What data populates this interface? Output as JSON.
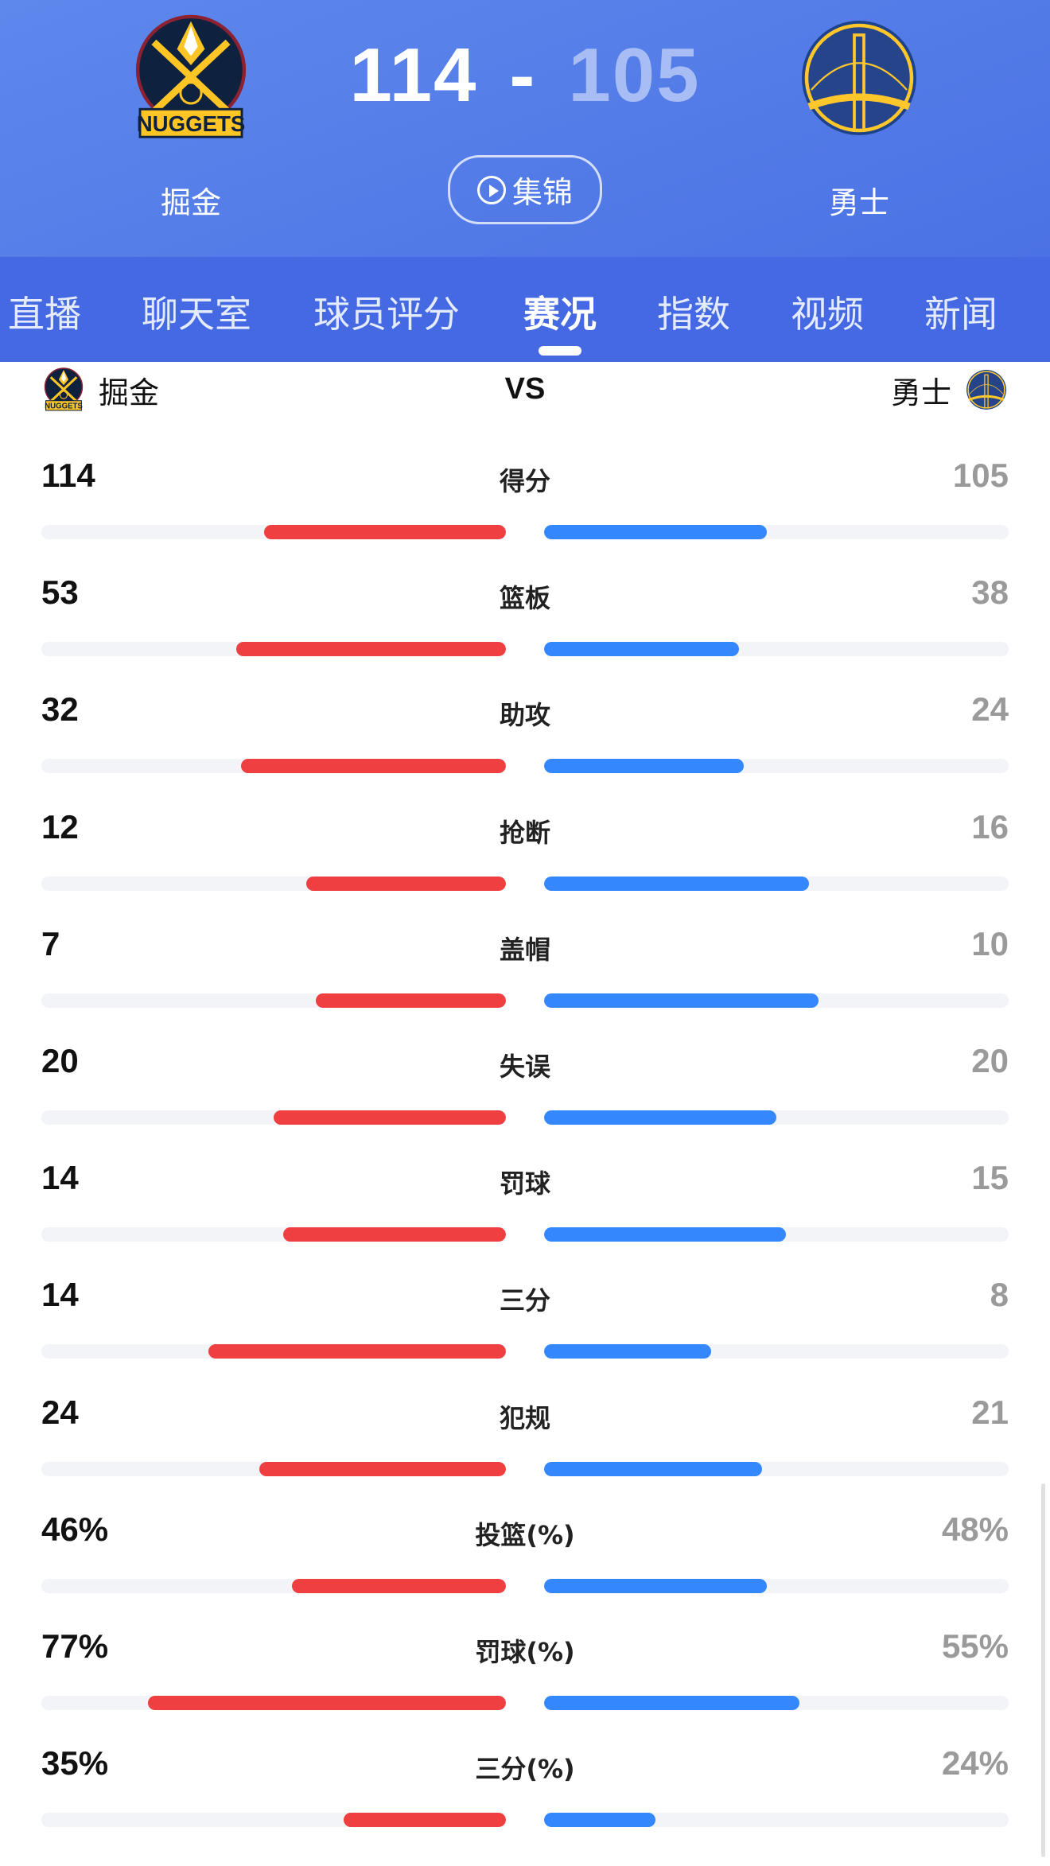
{
  "header": {
    "home": {
      "name": "掘金",
      "logo_text": "NUGGETS",
      "score": "114"
    },
    "away": {
      "name": "勇士",
      "score": "105"
    },
    "dash": "-",
    "highlights_label": "集锦"
  },
  "tabs": [
    {
      "label": "直播"
    },
    {
      "label": "聊天室"
    },
    {
      "label": "球员评分"
    },
    {
      "label": "赛况",
      "active": true
    },
    {
      "label": "指数"
    },
    {
      "label": "视频"
    },
    {
      "label": "新闻"
    }
  ],
  "compare": {
    "home": "掘金",
    "vs": "VS",
    "away": "勇士"
  },
  "colors": {
    "home": "#f03f40",
    "away": "#3487fd",
    "track": "#f3f4f8"
  },
  "stats": [
    {
      "label": "得分",
      "home": "114",
      "away": "105",
      "home_fill": 0.52,
      "away_fill": 0.48
    },
    {
      "label": "篮板",
      "home": "53",
      "away": "38",
      "home_fill": 0.58,
      "away_fill": 0.42
    },
    {
      "label": "助攻",
      "home": "32",
      "away": "24",
      "home_fill": 0.57,
      "away_fill": 0.43
    },
    {
      "label": "抢断",
      "home": "12",
      "away": "16",
      "home_fill": 0.43,
      "away_fill": 0.57
    },
    {
      "label": "盖帽",
      "home": "7",
      "away": "10",
      "home_fill": 0.41,
      "away_fill": 0.59
    },
    {
      "label": "失误",
      "home": "20",
      "away": "20",
      "home_fill": 0.5,
      "away_fill": 0.5
    },
    {
      "label": "罚球",
      "home": "14",
      "away": "15",
      "home_fill": 0.48,
      "away_fill": 0.52
    },
    {
      "label": "三分",
      "home": "14",
      "away": "8",
      "home_fill": 0.64,
      "away_fill": 0.36
    },
    {
      "label": "犯规",
      "home": "24",
      "away": "21",
      "home_fill": 0.53,
      "away_fill": 0.47
    },
    {
      "label": "投篮(%)",
      "home": "46%",
      "away": "48%",
      "home_fill": 0.46,
      "away_fill": 0.48
    },
    {
      "label": "罚球(%)",
      "home": "77%",
      "away": "55%",
      "home_fill": 0.77,
      "away_fill": 0.55
    },
    {
      "label": "三分(%)",
      "home": "35%",
      "away": "24%",
      "home_fill": 0.35,
      "away_fill": 0.24
    }
  ]
}
